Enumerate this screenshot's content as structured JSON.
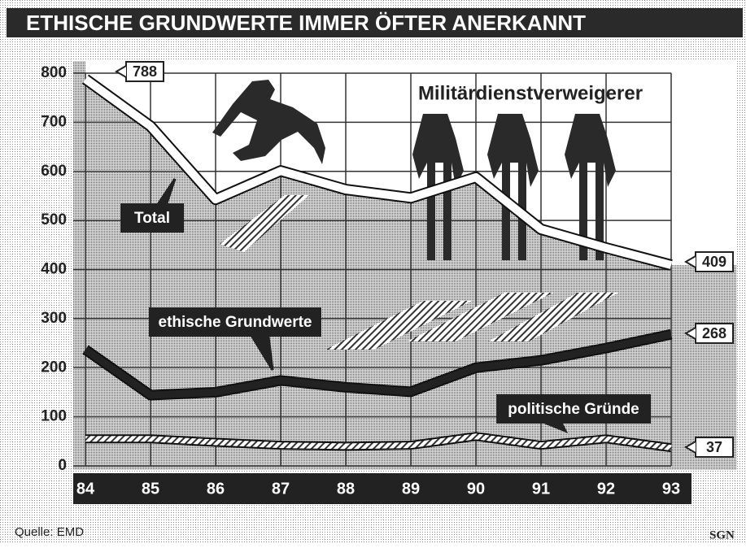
{
  "chart_data": {
    "type": "line",
    "title": "ETHISCHE GRUNDWERTE IMMER ÖFTER ANERKANNT",
    "annotation": "Militärdienstverweigerer",
    "source": "Quelle: EMD",
    "credit": "SGN",
    "categories": [
      "84",
      "85",
      "86",
      "87",
      "88",
      "89",
      "90",
      "91",
      "92",
      "93"
    ],
    "series": [
      {
        "name": "Total",
        "color": "#ffffff",
        "values": [
          788,
          692,
          543,
          601,
          563,
          546,
          588,
          482,
          444,
          409
        ]
      },
      {
        "name": "ethische Grundwerte",
        "color": "#222222",
        "values": [
          237,
          144,
          150,
          174,
          160,
          151,
          200,
          215,
          240,
          268
        ]
      },
      {
        "name": "politische Gründe",
        "color": "#ffffff",
        "values": [
          55,
          55,
          48,
          42,
          40,
          42,
          60,
          42,
          55,
          37
        ]
      }
    ],
    "ylim": [
      0,
      800
    ],
    "yticks": [
      0,
      100,
      200,
      300,
      400,
      500,
      600,
      700,
      800
    ],
    "grid": true
  }
}
